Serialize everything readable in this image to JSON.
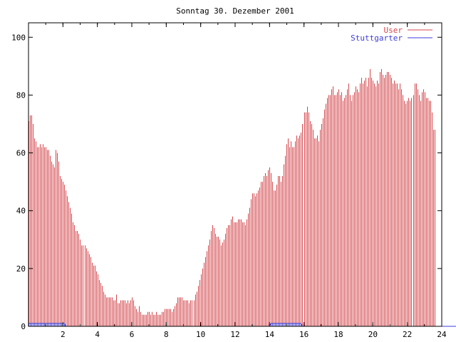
{
  "chart_data": {
    "type": "bar",
    "title": "Sonntag 30. Dezember 2001",
    "xlabel": "",
    "ylabel": "",
    "xlim": [
      0,
      24
    ],
    "ylim": [
      0,
      105
    ],
    "x_ticks": [
      "2",
      "4",
      "6",
      "8",
      "10",
      "12",
      "14",
      "16",
      "18",
      "20",
      "22",
      "24"
    ],
    "y_ticks": [
      "0",
      "20",
      "40",
      "60",
      "80",
      "100"
    ],
    "grid": false,
    "legend_position": "top-right",
    "series": [
      {
        "name": "User",
        "color": "#d4474c",
        "style": "impulses",
        "x_start": 0,
        "x_step": 0.0833,
        "values": [
          71,
          73,
          73,
          70,
          65,
          64,
          62,
          62,
          63,
          62,
          63,
          62,
          62,
          61,
          61,
          59,
          57,
          56,
          55,
          61,
          60,
          57,
          52,
          51,
          50,
          49,
          47,
          45,
          43,
          41,
          39,
          36,
          35,
          33,
          33,
          32,
          30,
          28,
          28,
          28,
          27,
          26,
          25,
          24,
          22,
          21,
          21,
          19,
          18,
          16,
          15,
          14,
          12,
          11,
          10,
          10,
          10,
          10,
          10,
          9,
          9,
          11,
          8,
          8,
          9,
          9,
          9,
          9,
          8,
          9,
          8,
          9,
          10,
          9,
          7,
          6,
          5,
          7,
          5,
          4,
          4,
          4,
          4,
          5,
          5,
          4,
          5,
          4,
          4,
          5,
          4,
          4,
          4,
          5,
          5,
          6,
          6,
          6,
          6,
          6,
          5,
          6,
          7,
          8,
          10,
          10,
          10,
          10,
          9,
          9,
          9,
          9,
          8,
          9,
          9,
          9,
          11,
          12,
          14,
          16,
          18,
          20,
          22,
          24,
          26,
          28,
          30,
          33,
          35,
          34,
          32,
          31,
          31,
          30,
          28,
          29,
          30,
          32,
          34,
          35,
          35,
          37,
          38,
          36,
          36,
          36,
          37,
          37,
          37,
          36,
          36,
          35,
          37,
          39,
          41,
          44,
          46,
          46,
          45,
          46,
          47,
          48,
          50,
          50,
          52,
          53,
          52,
          54,
          55,
          53,
          50,
          47,
          47,
          49,
          52,
          52,
          50,
          52,
          56,
          59,
          63,
          65,
          62,
          64,
          62,
          62,
          64,
          66,
          65,
          66,
          67,
          70,
          74,
          74,
          76,
          74,
          71,
          70,
          68,
          65,
          65,
          66,
          64,
          68,
          70,
          72,
          75,
          77,
          79,
          80,
          80,
          82,
          83,
          80,
          80,
          81,
          82,
          80,
          81,
          78,
          79,
          80,
          82,
          84,
          80,
          78,
          80,
          81,
          83,
          82,
          81,
          84,
          86,
          84,
          85,
          86,
          83,
          86,
          89,
          86,
          85,
          84,
          83,
          85,
          84,
          88,
          89,
          87,
          86,
          87,
          88,
          88,
          87,
          86,
          84,
          85,
          84,
          84,
          82,
          84,
          82,
          80,
          78,
          77,
          78,
          79,
          78,
          79,
          80,
          84,
          84,
          82,
          80,
          78,
          81,
          82,
          81,
          79,
          79,
          78,
          78,
          74,
          68,
          68
        ]
      },
      {
        "name": "Stuttgarter",
        "color": "#3c3cd8",
        "style": "impulses",
        "x_start": 0,
        "x_step": 0.0833,
        "values": [
          1,
          1,
          1,
          1,
          1,
          1,
          1,
          1,
          1,
          1,
          1,
          1,
          1,
          1,
          1,
          1,
          1,
          1,
          1,
          1,
          1,
          1,
          1,
          1,
          1,
          1,
          0,
          0,
          0,
          0,
          0,
          0,
          0,
          0,
          0,
          0,
          0,
          0,
          0,
          0,
          0,
          0,
          0,
          0,
          0,
          0,
          0,
          0,
          0,
          0,
          0,
          0,
          0,
          0,
          0,
          0,
          0,
          0,
          0,
          0,
          0,
          0,
          0,
          0,
          0,
          0,
          0,
          0,
          0,
          0,
          0,
          0,
          0,
          0,
          0,
          0,
          0,
          0,
          0,
          0,
          0,
          0,
          0,
          0,
          0,
          0,
          0,
          0,
          0,
          0,
          0,
          0,
          0,
          0,
          0,
          0,
          0,
          0,
          0,
          0,
          0,
          0,
          0,
          0,
          0,
          0,
          0,
          0,
          0,
          0,
          0,
          0,
          0,
          0,
          0,
          0,
          0,
          0,
          0,
          0,
          0,
          0,
          0,
          0,
          0,
          0,
          0,
          0,
          0,
          0,
          0,
          0,
          0,
          0,
          0,
          0,
          0,
          0,
          0,
          0,
          0,
          0,
          0,
          0,
          0,
          0,
          0,
          0,
          0,
          0,
          0,
          0,
          0,
          0,
          0,
          0,
          0,
          0,
          0,
          0,
          0,
          0,
          0,
          0,
          0,
          0,
          0,
          0,
          0,
          1,
          1,
          1,
          1,
          1,
          1,
          1,
          1,
          1,
          1,
          1,
          1,
          1,
          1,
          1,
          1,
          1,
          1,
          1,
          1,
          1,
          1,
          0,
          0,
          0,
          0,
          0,
          0,
          0,
          0,
          0,
          0,
          0,
          0,
          0,
          0,
          0,
          0,
          0,
          0,
          0,
          0,
          0,
          0,
          0,
          0,
          0,
          0,
          0,
          0,
          0,
          0,
          0,
          0,
          0,
          0,
          0,
          0,
          0,
          0,
          0,
          0,
          0,
          0,
          0,
          0,
          0,
          0,
          0,
          0,
          0,
          0,
          0,
          0,
          0,
          0,
          0,
          0,
          0,
          0,
          0,
          0,
          0,
          0,
          0,
          0,
          0,
          0,
          0,
          0,
          0,
          0,
          0,
          0,
          0,
          0,
          0,
          0,
          0,
          0,
          0,
          0,
          0,
          0,
          0,
          0,
          0,
          0,
          0,
          0,
          0,
          0,
          0,
          0,
          0,
          0,
          0,
          0,
          0,
          0,
          0,
          0,
          0,
          0,
          0,
          0,
          0,
          0,
          0,
          0,
          0
        ]
      }
    ]
  }
}
